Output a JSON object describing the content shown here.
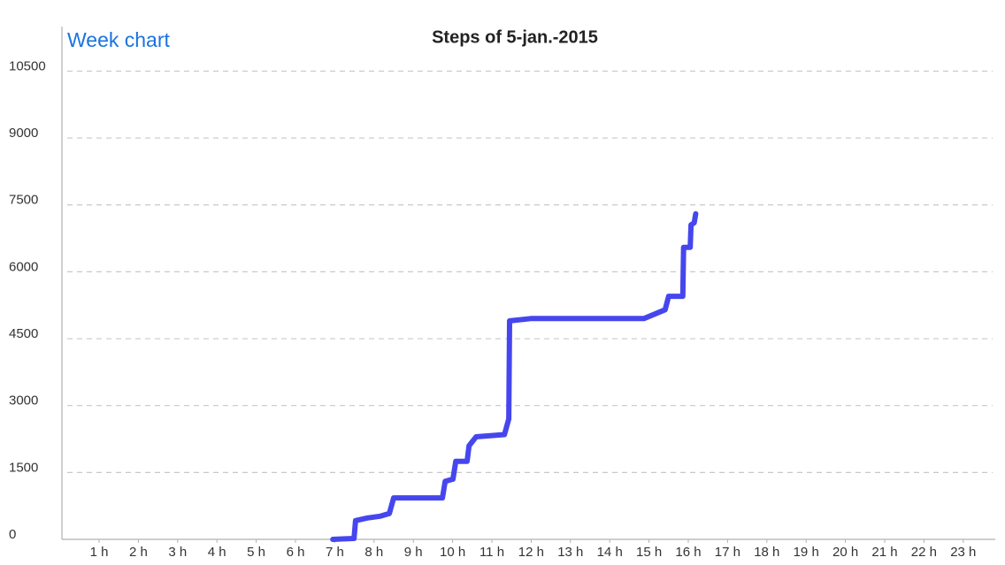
{
  "link": "Week chart",
  "chart_data": {
    "type": "line",
    "title": "Steps of 5-jan.-2015",
    "color": "#4646ee",
    "grid": true,
    "xlim": [
      0,
      24
    ],
    "ylim": [
      0,
      11500
    ],
    "xticks": [
      {
        "value": 1,
        "label": "1 h"
      },
      {
        "value": 2,
        "label": "2 h"
      },
      {
        "value": 3,
        "label": "3 h"
      },
      {
        "value": 4,
        "label": "4 h"
      },
      {
        "value": 5,
        "label": "5 h"
      },
      {
        "value": 6,
        "label": "6 h"
      },
      {
        "value": 7,
        "label": "7 h"
      },
      {
        "value": 8,
        "label": "8 h"
      },
      {
        "value": 9,
        "label": "9 h"
      },
      {
        "value": 10,
        "label": "10 h"
      },
      {
        "value": 11,
        "label": "11 h"
      },
      {
        "value": 12,
        "label": "12 h"
      },
      {
        "value": 13,
        "label": "13 h"
      },
      {
        "value": 14,
        "label": "14 h"
      },
      {
        "value": 15,
        "label": "15 h"
      },
      {
        "value": 16,
        "label": "16 h"
      },
      {
        "value": 17,
        "label": "17 h"
      },
      {
        "value": 18,
        "label": "18 h"
      },
      {
        "value": 19,
        "label": "19 h"
      },
      {
        "value": 20,
        "label": "20 h"
      },
      {
        "value": 21,
        "label": "21 h"
      },
      {
        "value": 22,
        "label": "22 h"
      },
      {
        "value": 23,
        "label": "23 h"
      }
    ],
    "yticks": [
      0,
      1500,
      3000,
      4500,
      6000,
      7500,
      9000,
      10500
    ],
    "x": [
      6.95,
      7.49,
      7.53,
      7.83,
      8.16,
      8.39,
      8.5,
      9.74,
      9.81,
      10.01,
      10.08,
      10.37,
      10.42,
      10.6,
      11.32,
      11.43,
      11.45,
      11.99,
      14.87,
      15.14,
      15.41,
      15.5,
      15.86,
      15.88,
      16.05,
      16.07,
      16.15,
      16.19
    ],
    "values": [
      0,
      20,
      420,
      480,
      520,
      580,
      930,
      930,
      1300,
      1350,
      1750,
      1750,
      2100,
      2300,
      2350,
      2700,
      4900,
      4950,
      4950,
      5050,
      5150,
      5450,
      5450,
      6550,
      6550,
      7050,
      7100,
      7300
    ]
  }
}
